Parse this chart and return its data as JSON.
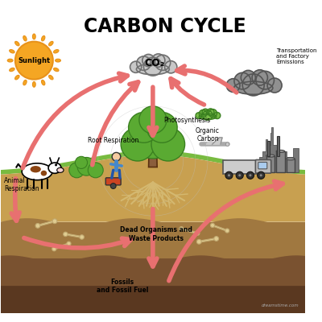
{
  "title": "CARBON CYCLE",
  "title_fontsize": 17,
  "title_fontweight": "bold",
  "bg_color": "#ffffff",
  "arrow_color": "#e87070",
  "arrow_lw": 4,
  "labels": {
    "sunlight": "Sunlight",
    "co2": "CO₂",
    "photosynthesis": "Photosynthesis",
    "organic_carbon": "Organic\nCarbon",
    "transportation": "Transportation\nand Factory\nEmissions",
    "animal_respiration": "Animal\nRespiration",
    "root_respiration": "Root Respiration",
    "dead_organisms": "Dead Organisms and\nWaste Products",
    "fossils": "Fossils\nand Fossil Fuel",
    "dreamstime": "dreamstime.com"
  },
  "sun_color": "#f5a623",
  "sun_outline": "#e8921a",
  "cloud_light": "#d0d0d0",
  "cloud_dark": "#909090",
  "co2_cloud_color": "#c8c8c8",
  "pollution_cloud_color": "#909090",
  "green_cloud_color": "#78bb48",
  "tree_trunk": "#8b5e3c",
  "tree_leaves": "#5aaa32",
  "tree_leaves_dark": "#3a8020",
  "root_color": "#d4b870",
  "soil_top": "#c8a050",
  "soil_mid": "#a07840",
  "soil_dark": "#7a5230",
  "soil_darkest": "#5a3820",
  "grass_green": "#78bb40",
  "bone_color": "#e0cc90",
  "cow_body": "#ffffff",
  "cow_spot": "#8b4513",
  "person_shirt": "#4488cc",
  "cart_color": "#cc4422",
  "truck_color": "#cccccc",
  "factory_color": "#aaaaaa",
  "sky_color": "#f0f8ff"
}
